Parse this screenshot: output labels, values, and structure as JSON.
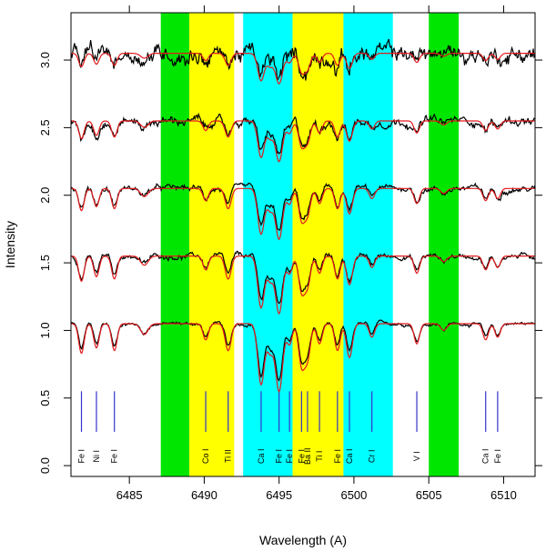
{
  "chart_data": {
    "type": "line",
    "title": "",
    "xlabel": "Wavelength (A)",
    "ylabel": "Intensity",
    "xlim": [
      6481.1,
      6512.1
    ],
    "ylim": [
      -0.08,
      3.35
    ],
    "x_ticks": [
      6485,
      6490,
      6495,
      6500,
      6505,
      6510
    ],
    "x_tick_labels": [
      "6485",
      "6490",
      "6495",
      "6500",
      "6505",
      "6510"
    ],
    "y_ticks": [
      0.0,
      0.5,
      1.0,
      1.5,
      2.0,
      2.5,
      3.0
    ],
    "y_tick_labels": [
      "0.0",
      "0.5",
      "1.0",
      "1.5",
      "2.0",
      "2.5",
      "3.0"
    ],
    "bands": [
      {
        "x0": 6487.1,
        "x1": 6489.0,
        "color": "#00e600"
      },
      {
        "x0": 6489.0,
        "x1": 6492.0,
        "color": "#ffff00"
      },
      {
        "x0": 6492.6,
        "x1": 6495.9,
        "color": "#00ffff"
      },
      {
        "x0": 6495.9,
        "x1": 6499.3,
        "color": "#ffff00"
      },
      {
        "x0": 6499.3,
        "x1": 6502.6,
        "color": "#00ffff"
      },
      {
        "x0": 6505.0,
        "x1": 6507.0,
        "color": "#00e600"
      }
    ],
    "line_marker_color": "#3333cc",
    "line_marker_range": [
      0.25,
      0.55
    ],
    "lines": [
      {
        "wavelength": 6481.8,
        "label": "Fe I"
      },
      {
        "wavelength": 6482.8,
        "label": "Ni I"
      },
      {
        "wavelength": 6484.0,
        "label": "Fe I"
      },
      {
        "wavelength": 6490.1,
        "label": "Co I"
      },
      {
        "wavelength": 6491.6,
        "label": "Ti II"
      },
      {
        "wavelength": 6493.8,
        "label": "Ca I"
      },
      {
        "wavelength": 6495.0,
        "label": "Fe I"
      },
      {
        "wavelength": 6495.7,
        "label": "Fe I"
      },
      {
        "wavelength": 6496.5,
        "label": "Fe I"
      },
      {
        "wavelength": 6496.9,
        "label": "Ba II"
      },
      {
        "wavelength": 6497.7,
        "label": "Ti I"
      },
      {
        "wavelength": 6498.9,
        "label": "Fe I"
      },
      {
        "wavelength": 6499.7,
        "label": "Ca I"
      },
      {
        "wavelength": 6501.2,
        "label": "Cr I"
      },
      {
        "wavelength": 6504.2,
        "label": "V I"
      },
      {
        "wavelength": 6508.8,
        "label": "Ca I"
      },
      {
        "wavelength": 6509.6,
        "label": "Fe I"
      }
    ],
    "series_colors": {
      "observed": "#000000",
      "model": "#e31a1c"
    },
    "spectrum_offsets": [
      1.05,
      1.55,
      2.05,
      2.55,
      3.05
    ],
    "depth_scales": [
      1.0,
      0.85,
      0.75,
      0.6,
      0.45
    ],
    "observed_noise": [
      0.012,
      0.018,
      0.02,
      0.03,
      0.06
    ],
    "absorption_lines": [
      {
        "wavelength": 6481.8,
        "depth": 0.22,
        "width": 0.18
      },
      {
        "wavelength": 6482.8,
        "depth": 0.18,
        "width": 0.18
      },
      {
        "wavelength": 6484.0,
        "depth": 0.2,
        "width": 0.18
      },
      {
        "wavelength": 6486.0,
        "depth": 0.08,
        "width": 0.25
      },
      {
        "wavelength": 6490.1,
        "depth": 0.12,
        "width": 0.18
      },
      {
        "wavelength": 6491.6,
        "depth": 0.2,
        "width": 0.2
      },
      {
        "wavelength": 6493.8,
        "depth": 0.45,
        "width": 0.22
      },
      {
        "wavelength": 6494.4,
        "depth": 0.2,
        "width": 0.2
      },
      {
        "wavelength": 6495.0,
        "depth": 0.5,
        "width": 0.24
      },
      {
        "wavelength": 6495.7,
        "depth": 0.15,
        "width": 0.18
      },
      {
        "wavelength": 6496.5,
        "depth": 0.3,
        "width": 0.2
      },
      {
        "wavelength": 6496.9,
        "depth": 0.25,
        "width": 0.2
      },
      {
        "wavelength": 6497.7,
        "depth": 0.15,
        "width": 0.18
      },
      {
        "wavelength": 6498.9,
        "depth": 0.2,
        "width": 0.18
      },
      {
        "wavelength": 6499.7,
        "depth": 0.25,
        "width": 0.2
      },
      {
        "wavelength": 6501.2,
        "depth": 0.1,
        "width": 0.18
      },
      {
        "wavelength": 6504.2,
        "depth": 0.15,
        "width": 0.18
      },
      {
        "wavelength": 6506.0,
        "depth": 0.05,
        "width": 0.2
      },
      {
        "wavelength": 6508.8,
        "depth": 0.12,
        "width": 0.18
      },
      {
        "wavelength": 6509.6,
        "depth": 0.1,
        "width": 0.18
      }
    ]
  }
}
